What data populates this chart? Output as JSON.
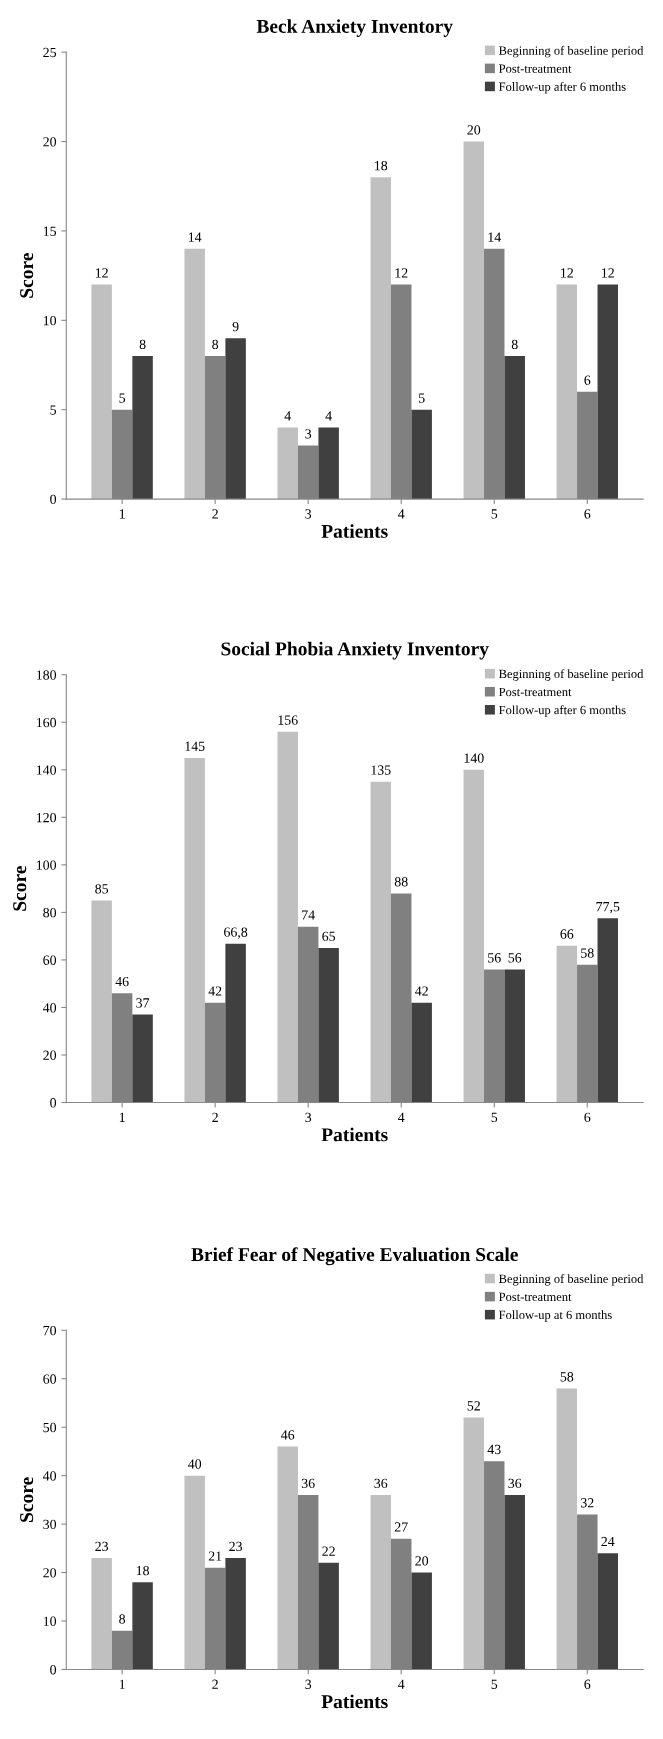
{
  "chart_data": [
    {
      "type": "bar",
      "title": "Beck Anxiety Inventory",
      "xlabel": "Patients",
      "ylabel": "Score",
      "categories": [
        "1",
        "2",
        "3",
        "4",
        "5",
        "6"
      ],
      "ylim": [
        0,
        25
      ],
      "yticks": [
        0,
        5,
        10,
        15,
        20,
        25
      ],
      "legend": "top right",
      "grid": false,
      "data_labels": true,
      "series": [
        {
          "name": "Beginning of baseline period",
          "color": "#c0c0c0",
          "values": [
            12,
            14,
            4,
            18,
            20,
            12
          ]
        },
        {
          "name": "Post-treatment",
          "color": "#808080",
          "values": [
            5,
            8,
            3,
            12,
            14,
            6
          ]
        },
        {
          "name": "Follow-up after 6 months",
          "color": "#404040",
          "values": [
            8,
            9,
            4,
            5,
            8,
            12
          ]
        }
      ]
    },
    {
      "type": "bar",
      "title": "Social Phobia Anxiety Inventory",
      "xlabel": "Patients",
      "ylabel": "Score",
      "categories": [
        "1",
        "2",
        "3",
        "4",
        "5",
        "6"
      ],
      "ylim": [
        0,
        180
      ],
      "yticks": [
        0,
        20,
        40,
        60,
        80,
        100,
        120,
        140,
        160,
        180
      ],
      "legend": "top right",
      "grid": false,
      "series": [
        {
          "name": "Beginning of baseline period",
          "color": "#c0c0c0",
          "values": [
            85,
            145,
            156,
            135,
            140,
            66
          ],
          "value_labels": [
            "85",
            "145",
            "156",
            "135",
            "140",
            "66"
          ]
        },
        {
          "name": "Post-treatment",
          "color": "#808080",
          "values": [
            46,
            42,
            74,
            88,
            56,
            58
          ],
          "value_labels": [
            "46",
            "42",
            "74",
            "88",
            "56",
            "58"
          ]
        },
        {
          "name": "Follow-up after 6 months",
          "color": "#404040",
          "values": [
            37,
            66.8,
            65,
            42,
            56,
            77.5
          ],
          "value_labels": [
            "37",
            "66,8",
            "65",
            "42",
            "56",
            "77,5"
          ]
        }
      ]
    },
    {
      "type": "bar",
      "title": "Brief Fear of Negative Evaluation Scale",
      "xlabel": "Patients",
      "ylabel": "Score",
      "categories": [
        "1",
        "2",
        "3",
        "4",
        "5",
        "6"
      ],
      "ylim": [
        0,
        70
      ],
      "yticks": [
        0,
        10,
        20,
        30,
        40,
        50,
        60,
        70
      ],
      "legend": "top right",
      "grid": false,
      "data_labels": true,
      "series": [
        {
          "name": "Beginning of baseline period",
          "color": "#c0c0c0",
          "values": [
            23,
            40,
            46,
            36,
            52,
            58
          ]
        },
        {
          "name": "Post-treatment",
          "color": "#808080",
          "values": [
            8,
            21,
            36,
            27,
            43,
            32
          ]
        },
        {
          "name": "Follow-up at 6 months",
          "color": "#404040",
          "values": [
            18,
            23,
            22,
            20,
            36,
            24
          ]
        }
      ]
    }
  ]
}
